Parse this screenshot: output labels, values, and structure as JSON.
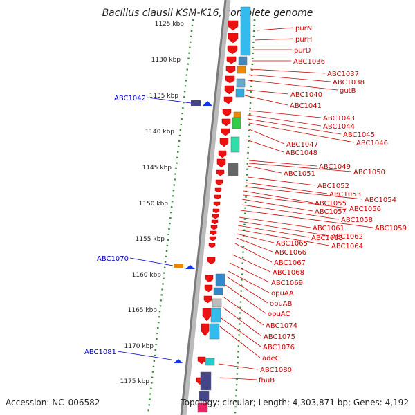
{
  "title": "Bacillus clausii KSM-K16, complete genome",
  "footer": {
    "accession": "Accession: NC_006582",
    "summary": "Topology: circular; Length: 4,303,871 bp; Genes: 4,192"
  },
  "kbp_ticks": [
    "1125 kbp",
    "1130 kbp",
    "1135 kbp",
    "1140 kbp",
    "1145 kbp",
    "1150 kbp",
    "1155 kbp",
    "1160 kbp",
    "1165 kbp",
    "1170 kbp",
    "1175 kbp"
  ],
  "right_labels": [
    "purN",
    "purH",
    "purD",
    "ABC1036",
    "ABC1037",
    "ABC1038",
    "gutB",
    "ABC1040",
    "ABC1041",
    "ABC1043",
    "ABC1044",
    "ABC1045",
    "ABC1046",
    "ABC1047",
    "ABC1048",
    "ABC1049",
    "ABC1050",
    "ABC1051",
    "ABC1052",
    "ABC1053",
    "ABC1054",
    "ABC1055",
    "ABC1056",
    "ABC1057",
    "ABC1058",
    "ABC1059",
    "ABC1061",
    "ABC1062",
    "ABC1063",
    "ABC1064",
    "ABC1065",
    "ABC1066",
    "ABC1067",
    "ABC1068",
    "ABC1069",
    "opuAA",
    "opuAB",
    "opuAC",
    "ABC1074",
    "ABC1075",
    "ABC1076",
    "adeC",
    "ABC1080",
    "fhuB"
  ],
  "left_labels": [
    "ABC1042",
    "ABC1070",
    "ABC1081"
  ],
  "colors": {
    "forward_gene": "#ee1111",
    "reverse_gene": "#1133ee",
    "gene_label": "#cc0000",
    "reverse_label": "#0000cc",
    "gc_dots": "#2e8b2e",
    "backbone": "#888888"
  }
}
